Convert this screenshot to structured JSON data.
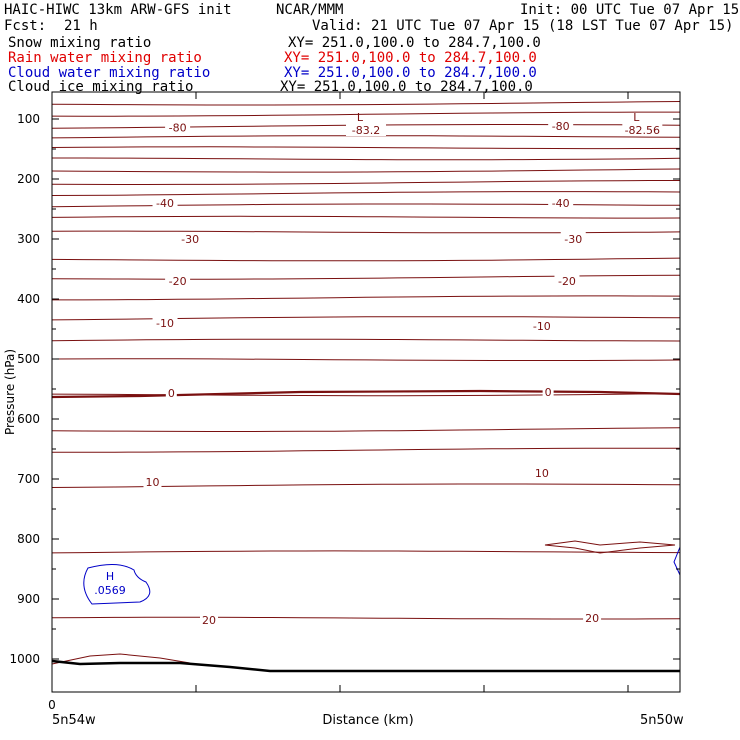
{
  "header": {
    "title": "HAIC-HIWC 13km ARW-GFS init",
    "org": "NCAR/MMM",
    "init": "Init: 00 UTC Tue 07 Apr 15",
    "fcst_label": "Fcst:",
    "fcst_value": "21 h",
    "valid": "Valid: 21 UTC Tue 07 Apr 15 (18 LST Tue 07 Apr 15)"
  },
  "fields": [
    {
      "name": "Snow mixing ratio",
      "xy": "XY= 251.0,100.0 to 284.7,100.0",
      "color": "#000000"
    },
    {
      "name": "Rain water mixing ratio",
      "xy": "XY= 251.0,100.0 to 284.7,100.0",
      "color": "#e00000"
    },
    {
      "name": "Cloud water mixing ratio",
      "xy": "XY= 251.0,100.0 to 284.7,100.0",
      "color": "#0000c8"
    },
    {
      "name": "Cloud ice mixing ratio",
      "xy": "XY= 251.0,100.0 to 284.7,100.0",
      "color": "#000000"
    }
  ],
  "chart_data": {
    "type": "contour",
    "xlabel": "Distance (km)",
    "ylabel": "Pressure (hPa)",
    "x_tick_zero": "0",
    "x_start_label": "5n54w",
    "x_end_label": "5n50w",
    "yticks": [
      100,
      200,
      300,
      400,
      500,
      600,
      700,
      800,
      900,
      1000
    ],
    "ylim": [
      1050,
      40
    ],
    "x_range": [
      0,
      1
    ],
    "temperature_contour_color": "#7a1010",
    "temperature_contour_labels": [
      {
        "text": "-80",
        "x": 0.2,
        "p": 114
      },
      {
        "text": "-80",
        "x": 0.81,
        "p": 112
      },
      {
        "text": "-40",
        "x": 0.18,
        "p": 240
      },
      {
        "text": "-40",
        "x": 0.81,
        "p": 240
      },
      {
        "text": "-30",
        "x": 0.22,
        "p": 300
      },
      {
        "text": "-30",
        "x": 0.83,
        "p": 300
      },
      {
        "text": "-20",
        "x": 0.2,
        "p": 370
      },
      {
        "text": "-20",
        "x": 0.82,
        "p": 370
      },
      {
        "text": "-10",
        "x": 0.18,
        "p": 440
      },
      {
        "text": "-10",
        "x": 0.78,
        "p": 445
      },
      {
        "text": "0",
        "x": 0.19,
        "p": 557
      },
      {
        "text": "0",
        "x": 0.79,
        "p": 555
      },
      {
        "text": "10",
        "x": 0.16,
        "p": 705
      },
      {
        "text": "10",
        "x": 0.78,
        "p": 690
      },
      {
        "text": "20",
        "x": 0.25,
        "p": 935
      },
      {
        "text": "20",
        "x": 0.86,
        "p": 932
      }
    ],
    "temperature_contour_levels": [
      74,
      92,
      112,
      130,
      148,
      166,
      186,
      206,
      224,
      244,
      264,
      288,
      334,
      364,
      398,
      432,
      469,
      501,
      559,
      618,
      652,
      711,
      822,
      932
    ],
    "extrema": [
      {
        "type": "L",
        "value": "-83.2",
        "x": 0.5,
        "p": 110
      },
      {
        "type": "L",
        "value": "-82.56",
        "x": 0.94,
        "p": 110
      }
    ],
    "cloud_water_max": {
      "type": "H",
      "value": ".0569",
      "x": 0.07,
      "p": 875
    }
  }
}
